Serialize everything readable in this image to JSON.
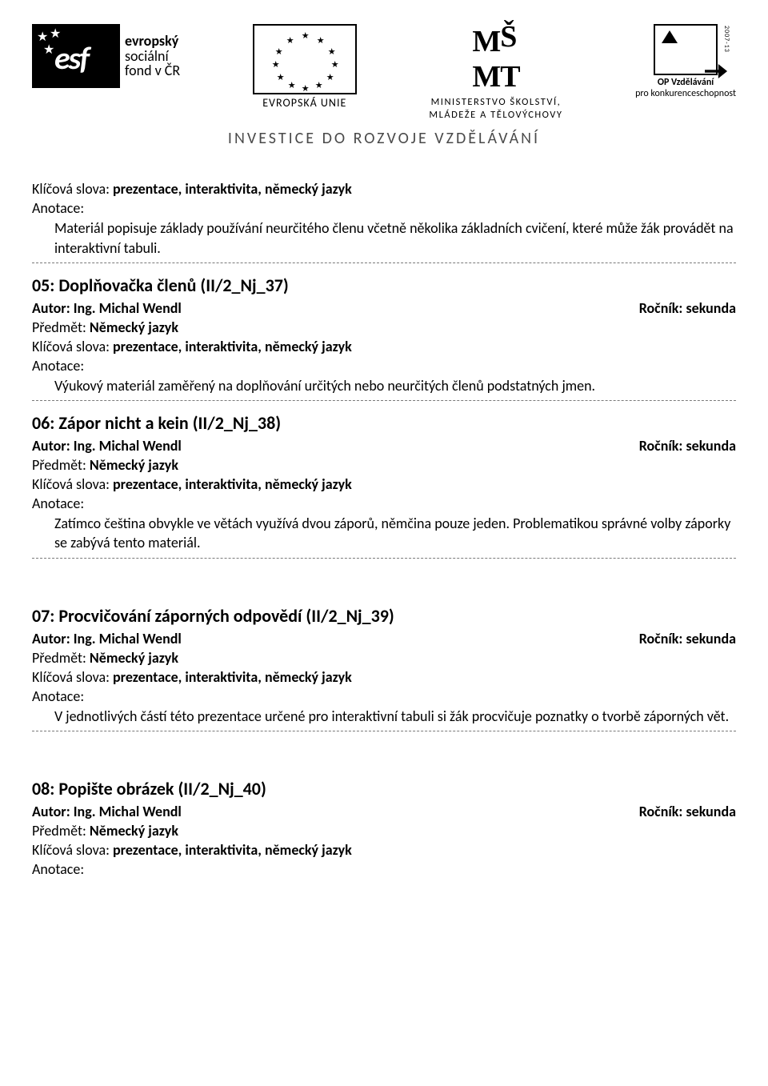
{
  "header": {
    "esf": {
      "line1": "evropský",
      "line2": "sociální",
      "line3": "fond v ČR"
    },
    "eu": {
      "label": "EVROPSKÁ UNIE"
    },
    "msmt": {
      "mark": "MŠMT",
      "line1": "MINISTERSTVO ŠKOLSTVÍ,",
      "line2": "MLÁDEŽE A TĚLOVÝCHOVY"
    },
    "op": {
      "title": "OP Vzdělávání",
      "sub": "pro konkurenceschopnost",
      "period": "2007-13"
    },
    "tagline": "INVESTICE DO ROZVOJE VZDĚLÁVÁNÍ"
  },
  "labels": {
    "keywords_prefix": "Klíčová slova: ",
    "annotation": "Anotace:",
    "author_prefix": "Autor: ",
    "grade_prefix": "Ročník: ",
    "subject_prefix": "Předmět: "
  },
  "common": {
    "author": "Ing. Michal Wendl",
    "grade": "sekunda",
    "subject": "Německý jazyk",
    "keywords": "prezentace, interaktivita, německý jazyk"
  },
  "top_annotation": "Materiál popisuje základy používání neurčitého členu včetně několika základních cvičení, které může žák provádět na interaktivní tabuli.",
  "entries": [
    {
      "title": "05: Doplňovačka členů (II/2_Nj_37)",
      "annotation": "Výukový materiál zaměřený na doplňování určitých nebo neurčitých členů podstatných jmen."
    },
    {
      "title": "06: Zápor nicht a kein (II/2_Nj_38)",
      "annotation": "Zatímco čeština obvykle ve větách využívá dvou záporů, němčina pouze jeden. Problematikou správné volby záporky se zabývá tento materiál."
    },
    {
      "title": "07: Procvičování záporných odpovědí (II/2_Nj_39)",
      "annotation": "V jednotlivých částí této prezentace určené pro interaktivní tabuli si žák procvičuje poznatky o tvorbě záporných vět.",
      "gap_before": true
    },
    {
      "title": "08: Popište obrázek (II/2_Nj_40)",
      "annotation": "",
      "gap_before": true,
      "no_rule": true
    }
  ],
  "colors": {
    "text": "#000000",
    "background": "#ffffff",
    "rule": "#7a7a7a",
    "tagline": "#4a4a4a"
  }
}
